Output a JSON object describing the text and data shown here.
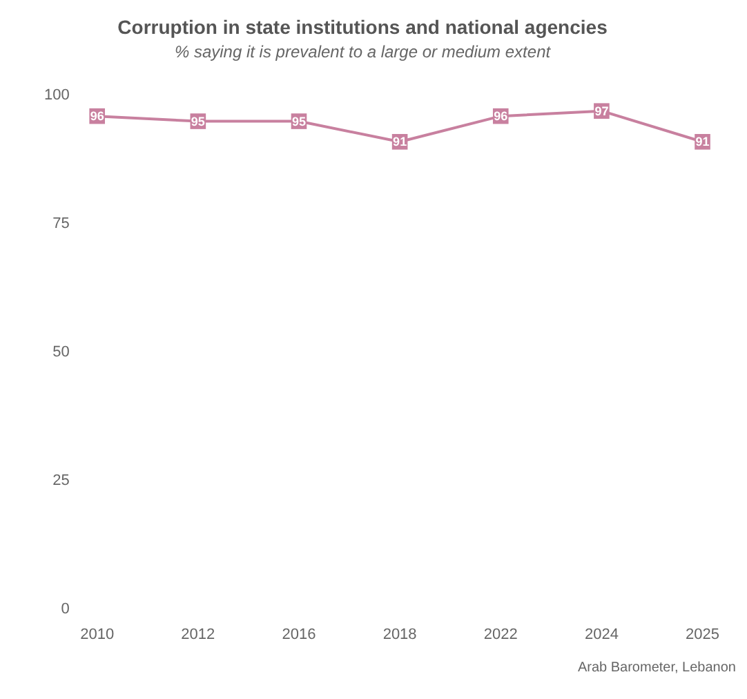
{
  "chart_data": {
    "type": "line",
    "title": "Corruption in state institutions and national agencies",
    "subtitle": "% saying it is prevalent to a large or medium extent",
    "categories": [
      "2010",
      "2012",
      "2016",
      "2018",
      "2022",
      "2024",
      "2025"
    ],
    "series": [
      {
        "color": "#c8809f",
        "values": [
          96,
          95,
          95,
          91,
          96,
          97,
          91
        ]
      }
    ],
    "ylim": [
      0,
      100
    ],
    "yticks": [
      0,
      25,
      50,
      75,
      100
    ],
    "grid": false,
    "legend": false,
    "marker": "square",
    "line_style": "solid",
    "data_labels": true,
    "annotations": [
      "Arab Barometer, Lebanon"
    ]
  }
}
